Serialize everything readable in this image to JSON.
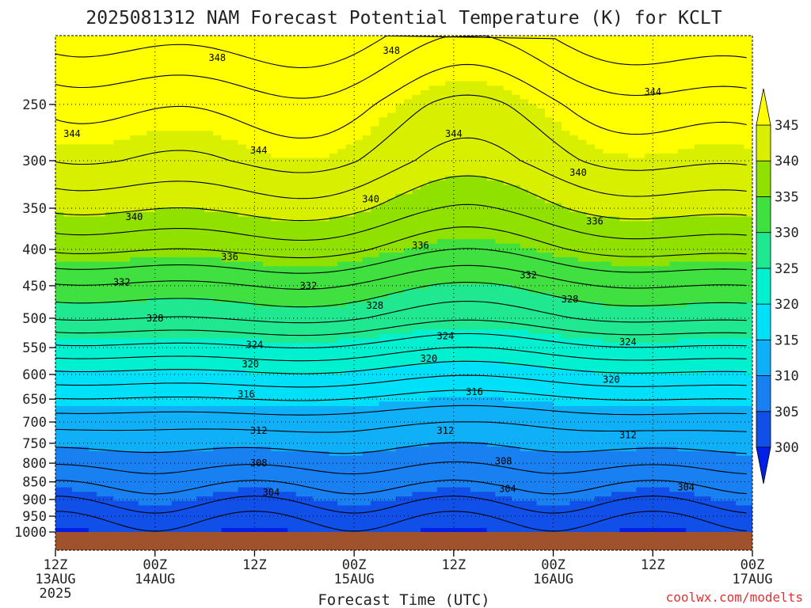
{
  "title": "2025081312 NAM Forecast Potential Temperature (K) for KCLT",
  "credit": "coolwx.com/modelts",
  "chart_data": {
    "type": "heatmap",
    "title": "2025081312 NAM Forecast Potential Temperature (K) for KCLT",
    "xlabel": "Forecast Time (UTC)",
    "ylabel": "",
    "x_unit": "hours",
    "xlim": [
      0,
      84
    ],
    "ylim_hpa": [
      1000,
      200
    ],
    "y_scale": "log-pressure",
    "grid": "dotted",
    "x_ticks": [
      {
        "hour": 0,
        "lines": [
          "12Z",
          "13AUG",
          "2025"
        ]
      },
      {
        "hour": 12,
        "lines": [
          "00Z",
          "14AUG"
        ]
      },
      {
        "hour": 24,
        "lines": [
          "12Z"
        ]
      },
      {
        "hour": 36,
        "lines": [
          "00Z",
          "15AUG"
        ]
      },
      {
        "hour": 48,
        "lines": [
          "12Z"
        ]
      },
      {
        "hour": 60,
        "lines": [
          "00Z",
          "16AUG"
        ]
      },
      {
        "hour": 72,
        "lines": [
          "12Z"
        ]
      },
      {
        "hour": 84,
        "lines": [
          "00Z",
          "17AUG"
        ]
      }
    ],
    "y_ticks": [
      250,
      300,
      350,
      400,
      450,
      500,
      550,
      600,
      650,
      700,
      750,
      800,
      850,
      900,
      950,
      1000
    ],
    "colorbar": {
      "levels": [
        300,
        305,
        310,
        315,
        320,
        325,
        330,
        335,
        340,
        345
      ],
      "labels": [
        "300",
        "305",
        "310",
        "315",
        "320",
        "325",
        "330",
        "335",
        "340",
        "345"
      ],
      "colors": [
        "#0020e8",
        "#1050e8",
        "#1880f0",
        "#10b0f8",
        "#00e0f8",
        "#00f0d0",
        "#20e890",
        "#40e040",
        "#90e000",
        "#d8f000",
        "#ffff00"
      ]
    },
    "ground_color": "#a0522d",
    "profile": [
      {
        "p": 1000,
        "theta": 300.5
      },
      {
        "p": 975,
        "theta": 301.5
      },
      {
        "p": 950,
        "theta": 302.5
      },
      {
        "p": 925,
        "theta": 303.5
      },
      {
        "p": 900,
        "theta": 304.5
      },
      {
        "p": 850,
        "theta": 306.5
      },
      {
        "p": 800,
        "theta": 308.5
      },
      {
        "p": 750,
        "theta": 310.5
      },
      {
        "p": 700,
        "theta": 312.5
      },
      {
        "p": 650,
        "theta": 315.5
      },
      {
        "p": 600,
        "theta": 319.0
      },
      {
        "p": 550,
        "theta": 323.0
      },
      {
        "p": 500,
        "theta": 327.5
      },
      {
        "p": 450,
        "theta": 331.0
      },
      {
        "p": 400,
        "theta": 335.5
      },
      {
        "p": 350,
        "theta": 339.5
      },
      {
        "p": 300,
        "theta": 343.0
      },
      {
        "p": 250,
        "theta": 345.5
      },
      {
        "p": 200,
        "theta": 350.0
      }
    ],
    "contour_interval": 2,
    "contour_labels": [
      {
        "label": "348",
        "hour": 19.5,
        "hpa": 215
      },
      {
        "label": "348",
        "hour": 40.5,
        "hpa": 210
      },
      {
        "label": "344",
        "hour": 2.0,
        "hpa": 275
      },
      {
        "label": "344",
        "hour": 24.5,
        "hpa": 290
      },
      {
        "label": "344",
        "hour": 48.0,
        "hpa": 275
      },
      {
        "label": "344",
        "hour": 72.0,
        "hpa": 240
      },
      {
        "label": "340",
        "hour": 9.5,
        "hpa": 360
      },
      {
        "label": "340",
        "hour": 38.0,
        "hpa": 340
      },
      {
        "label": "340",
        "hour": 63.0,
        "hpa": 312
      },
      {
        "label": "336",
        "hour": 21.0,
        "hpa": 410
      },
      {
        "label": "336",
        "hour": 44.0,
        "hpa": 395
      },
      {
        "label": "336",
        "hour": 65.0,
        "hpa": 365
      },
      {
        "label": "332",
        "hour": 8.0,
        "hpa": 445
      },
      {
        "label": "332",
        "hour": 30.5,
        "hpa": 450
      },
      {
        "label": "332",
        "hour": 57.0,
        "hpa": 435
      },
      {
        "label": "328",
        "hour": 12.0,
        "hpa": 500
      },
      {
        "label": "328",
        "hour": 38.5,
        "hpa": 480
      },
      {
        "label": "328",
        "hour": 62.0,
        "hpa": 470
      },
      {
        "label": "324",
        "hour": 24.0,
        "hpa": 545
      },
      {
        "label": "324",
        "hour": 47.0,
        "hpa": 530
      },
      {
        "label": "324",
        "hour": 69.0,
        "hpa": 540
      },
      {
        "label": "320",
        "hour": 23.5,
        "hpa": 580
      },
      {
        "label": "320",
        "hour": 45.0,
        "hpa": 570
      },
      {
        "label": "320",
        "hour": 67.0,
        "hpa": 610
      },
      {
        "label": "316",
        "hour": 23.0,
        "hpa": 640
      },
      {
        "label": "316",
        "hour": 50.5,
        "hpa": 635
      },
      {
        "label": "312",
        "hour": 24.5,
        "hpa": 720
      },
      {
        "label": "312",
        "hour": 47.0,
        "hpa": 720
      },
      {
        "label": "312",
        "hour": 69.0,
        "hpa": 730
      },
      {
        "label": "308",
        "hour": 24.5,
        "hpa": 800
      },
      {
        "label": "308",
        "hour": 54.0,
        "hpa": 795
      },
      {
        "label": "304",
        "hour": 26.0,
        "hpa": 880
      },
      {
        "label": "304",
        "hour": 54.5,
        "hpa": 870
      },
      {
        "label": "304",
        "hour": 76.0,
        "hpa": 865
      }
    ]
  }
}
